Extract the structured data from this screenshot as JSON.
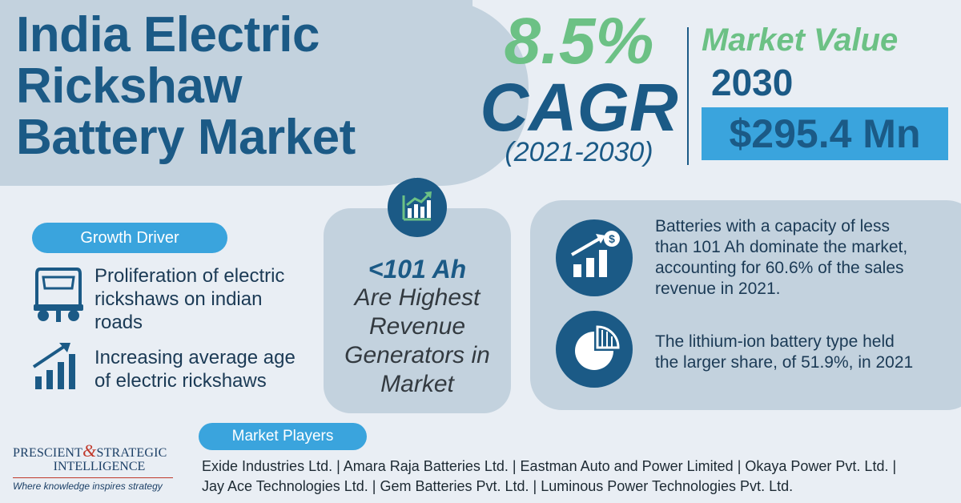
{
  "title": {
    "line1": "India Electric",
    "line2": "Rickshaw",
    "line3": "Battery Market"
  },
  "cagr": {
    "percent": "8.5%",
    "label": "CAGR",
    "period": "(2021-2030)"
  },
  "market_value": {
    "label": "Market Value",
    "year": "2030",
    "value": "$295.4 Mn"
  },
  "growth_driver": {
    "heading": "Growth Driver",
    "items": [
      {
        "icon": "auto-rickshaw-icon",
        "text_line1": "Proliferation of electric",
        "text_line2": "rickshaws on indian",
        "text_line3": "roads"
      },
      {
        "icon": "growth-bars-icon",
        "text_line1": "Increasing average age",
        "text_line2": "of electric rickshaws"
      }
    ]
  },
  "center": {
    "icon": "growth-chart-icon",
    "highlight": "<101 Ah",
    "line1": "Are Highest",
    "line2": "Revenue",
    "line3": "Generators in",
    "line4": "Market"
  },
  "insights": [
    {
      "icon": "revenue-growth-icon",
      "line1": "Batteries with a capacity of less",
      "line2": "than 101 Ah dominate the market,",
      "line3": "accounting for 60.6% of the sales",
      "line4": "revenue in 2021."
    },
    {
      "icon": "pie-chart-icon",
      "line1": "The lithium-ion battery type held",
      "line2": "the larger share, of 51.9%, in 2021"
    }
  ],
  "market_players": {
    "heading": "Market Players",
    "line1": "Exide Industries Ltd. | Amara Raja Batteries Ltd. | Eastman Auto and Power Limited | Okaya Power Pvt. Ltd. |",
    "line2": "Jay Ace Technologies Ltd. | Gem Batteries Pvt. Ltd. | Luminous Power Technologies Pvt. Ltd."
  },
  "logo": {
    "word1": "PRESCIENT",
    "amp": "&",
    "word2": "STRATEGIC",
    "word3": "INTELLIGENCE",
    "tagline": "Where knowledge inspires strategy"
  },
  "colors": {
    "dark_blue": "#1b5a86",
    "green": "#6cc185",
    "light_blue": "#3aa4dd",
    "panel": "#c3d2de",
    "background": "#e9eef4"
  }
}
